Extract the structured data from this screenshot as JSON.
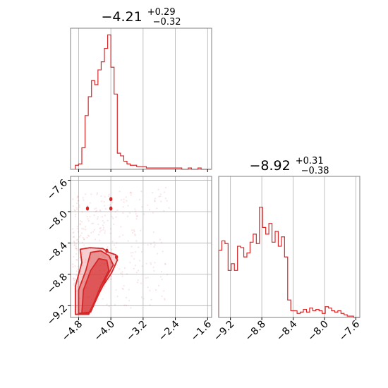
{
  "colors": {
    "accent": "#d62728",
    "grid": "#b0b0b0",
    "frame": "#808080"
  },
  "chart_data": [
    {
      "type": "histogram",
      "panel": "top-left",
      "title_value": "−4.21",
      "title_sup": "+0.29",
      "title_sub": "−0.32",
      "xlim": [
        -5.0,
        -1.5
      ],
      "ylim": [
        0,
        1.05
      ],
      "x_ticks": [
        -4.8,
        -4.0,
        -3.2,
        -2.4,
        -1.6
      ],
      "x_tick_labels": [],
      "grid": true,
      "bin_edges": [
        -4.88,
        -4.8,
        -4.72,
        -4.64,
        -4.56,
        -4.48,
        -4.4,
        -4.32,
        -4.24,
        -4.16,
        -4.08,
        -4.0,
        -3.92,
        -3.84,
        -3.76,
        -3.68,
        -3.6,
        -3.52,
        -3.44,
        -3.36,
        -3.28,
        -3.2,
        -3.12,
        -3.04,
        -2.96,
        -2.88,
        -2.8,
        -2.72,
        -2.64,
        -2.56,
        -2.48,
        -2.4,
        -2.32,
        -2.24,
        -2.16,
        -2.08,
        -2.0,
        -1.92,
        -1.84,
        -1.76,
        -1.68,
        -1.6,
        -1.52
      ],
      "counts": [
        0.03,
        0.04,
        0.16,
        0.4,
        0.54,
        0.66,
        0.63,
        0.74,
        0.8,
        0.9,
        1.0,
        0.76,
        0.56,
        0.12,
        0.1,
        0.06,
        0.04,
        0.03,
        0.03,
        0.02,
        0.02,
        0.02,
        0.01,
        0.01,
        0.01,
        0.01,
        0.01,
        0.01,
        0.01,
        0.01,
        0.01,
        0.01,
        0.01,
        0.0,
        0.0,
        0.01,
        0.0,
        0.0,
        0.01,
        0.0,
        0.0,
        0.0
      ]
    },
    {
      "type": "contour",
      "panel": "bottom-left",
      "xlim": [
        -5.0,
        -1.5
      ],
      "ylim": [
        -9.35,
        -7.55
      ],
      "x_ticks": [
        -4.8,
        -4.0,
        -3.2,
        -2.4,
        -1.6
      ],
      "x_tick_labels": [
        "−4.8",
        "−4.0",
        "−3.2",
        "−2.4",
        "−1.6"
      ],
      "y_ticks": [
        -7.6,
        -8.0,
        -8.4,
        -8.8,
        -9.2
      ],
      "y_tick_labels": [
        "−7.6",
        "−8.0",
        "−8.4",
        "−8.8",
        "−9.2"
      ],
      "grid": true,
      "contours": [
        {
          "level": "outer",
          "points": [
            [
              -4.88,
              -9.31
            ],
            [
              -4.88,
              -8.95
            ],
            [
              -4.72,
              -8.65
            ],
            [
              -4.76,
              -8.48
            ],
            [
              -4.52,
              -8.46
            ],
            [
              -4.2,
              -8.47
            ],
            [
              -4.05,
              -8.52
            ],
            [
              -3.88,
              -8.55
            ],
            [
              -3.84,
              -8.62
            ],
            [
              -3.98,
              -8.78
            ],
            [
              -4.2,
              -8.95
            ],
            [
              -4.4,
              -9.15
            ],
            [
              -4.55,
              -9.31
            ]
          ]
        },
        {
          "level": "middle",
          "points": [
            [
              -4.8,
              -9.3
            ],
            [
              -4.8,
              -9.0
            ],
            [
              -4.62,
              -8.75
            ],
            [
              -4.5,
              -8.52
            ],
            [
              -4.25,
              -8.5
            ],
            [
              -4.05,
              -8.56
            ],
            [
              -3.94,
              -8.68
            ],
            [
              -4.12,
              -8.85
            ],
            [
              -4.3,
              -9.05
            ],
            [
              -4.5,
              -9.28
            ]
          ]
        },
        {
          "level": "inner",
          "points": [
            [
              -4.72,
              -9.3
            ],
            [
              -4.68,
              -9.0
            ],
            [
              -4.5,
              -8.75
            ],
            [
              -4.3,
              -8.6
            ],
            [
              -4.1,
              -8.62
            ],
            [
              -4.05,
              -8.75
            ],
            [
              -4.25,
              -8.95
            ],
            [
              -4.45,
              -9.2
            ],
            [
              -4.55,
              -9.3
            ]
          ]
        }
      ],
      "hotspots": [
        [
          -4.58,
          -7.96
        ],
        [
          -4.0,
          -7.96
        ],
        [
          -4.0,
          -7.84
        ],
        [
          -4.1,
          -8.5
        ],
        [
          -3.86,
          -8.58
        ]
      ]
    },
    {
      "type": "histogram",
      "panel": "bottom-right",
      "title_value": "−8.92",
      "title_sup": "+0.31",
      "title_sub": "−0.38",
      "xlim": [
        -9.35,
        -7.55
      ],
      "ylim": [
        0,
        1.05
      ],
      "x_ticks": [
        -9.2,
        -8.8,
        -8.4,
        -8.0,
        -7.6
      ],
      "x_tick_labels": [
        "−9.2",
        "−8.8",
        "−8.4",
        "−8.0",
        "−7.6"
      ],
      "grid": true,
      "bin_edges": [
        -9.35,
        -9.31,
        -9.27,
        -9.23,
        -9.19,
        -9.15,
        -9.11,
        -9.07,
        -9.03,
        -8.99,
        -8.95,
        -8.91,
        -8.87,
        -8.83,
        -8.79,
        -8.75,
        -8.71,
        -8.67,
        -8.63,
        -8.59,
        -8.55,
        -8.51,
        -8.47,
        -8.43,
        -8.39,
        -8.35,
        -8.31,
        -8.27,
        -8.23,
        -8.19,
        -8.15,
        -8.11,
        -8.07,
        -8.03,
        -7.99,
        -7.95,
        -7.91,
        -7.87,
        -7.83,
        -7.79,
        -7.75,
        -7.71,
        -7.67,
        -7.63,
        -7.59,
        -7.55
      ],
      "counts": [
        0.5,
        0.57,
        0.55,
        0.35,
        0.4,
        0.35,
        0.53,
        0.52,
        0.45,
        0.48,
        0.56,
        0.62,
        0.55,
        0.82,
        0.67,
        0.62,
        0.7,
        0.56,
        0.64,
        0.53,
        0.6,
        0.45,
        0.13,
        0.05,
        0.05,
        0.03,
        0.04,
        0.06,
        0.04,
        0.07,
        0.05,
        0.06,
        0.05,
        0.03,
        0.08,
        0.07,
        0.05,
        0.04,
        0.05,
        0.03,
        0.02,
        0.01,
        0.01,
        0.0,
        0.0
      ]
    }
  ]
}
